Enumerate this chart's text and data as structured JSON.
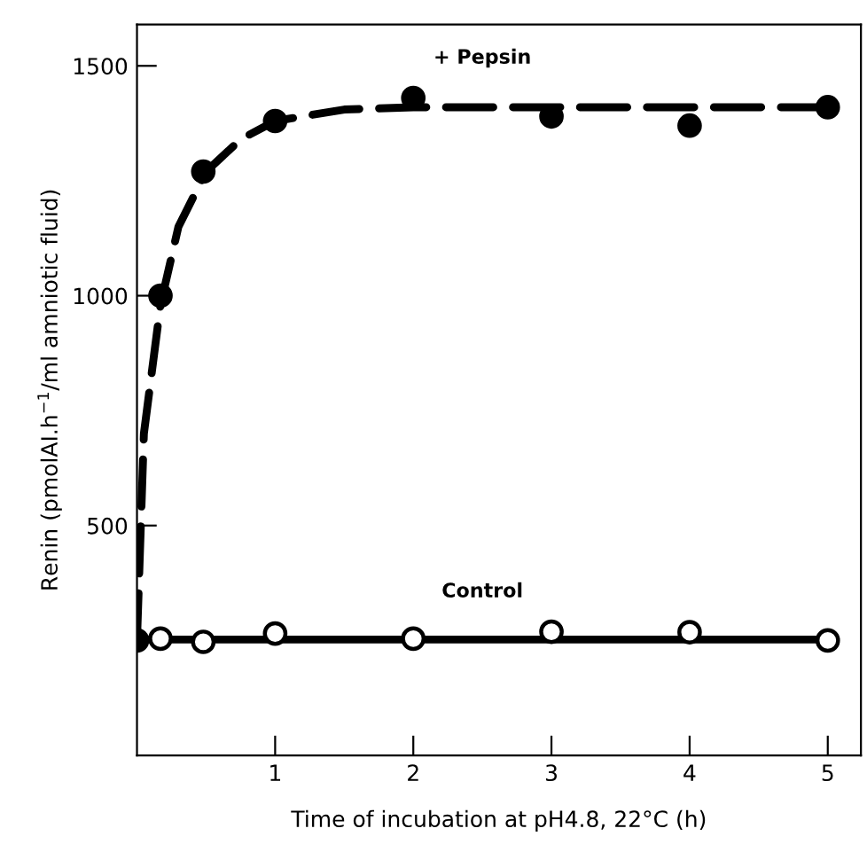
{
  "chart_data": {
    "type": "scatter",
    "xlabel": "Time of incubation at pH4.8, 22°C (h)",
    "ylabel": "Renin (pmolAI.h$^{−1}$/ml amniotic fluid)",
    "xlim": [
      0,
      5.24
    ],
    "ylim": [
      0,
      1590
    ],
    "xticks": [
      1,
      2,
      3,
      4,
      5
    ],
    "yticks": [
      500,
      1000,
      1500
    ],
    "grid": false,
    "legend": false,
    "series": [
      {
        "name": "+ Pepsin",
        "marker": "circle",
        "color": "#000000",
        "x": [
          0,
          0.17,
          0.48,
          1,
          2,
          3,
          4,
          5
        ],
        "values": [
          250,
          1000,
          1270,
          1380,
          1430,
          1390,
          1370,
          1410
        ]
      },
      {
        "type": "line",
        "line_style": "dashed",
        "color": "#000000",
        "x": [
          0,
          0.05,
          0.17,
          0.3,
          0.5,
          0.75,
          1,
          1.5,
          2,
          3,
          4,
          5
        ],
        "values": [
          250,
          700,
          980,
          1150,
          1270,
          1340,
          1380,
          1405,
          1410,
          1410,
          1410,
          1410
        ]
      },
      {
        "name": "Control",
        "marker": "circle",
        "color": "#ffffff",
        "x": [
          0.17,
          0.48,
          1,
          2,
          3,
          4,
          5
        ],
        "values": [
          254,
          247,
          265,
          254,
          269,
          268,
          250
        ]
      },
      {
        "type": "line",
        "line_style": "solid",
        "color": "#000000",
        "x": [
          0,
          5
        ],
        "values": [
          252,
          252
        ]
      }
    ]
  }
}
